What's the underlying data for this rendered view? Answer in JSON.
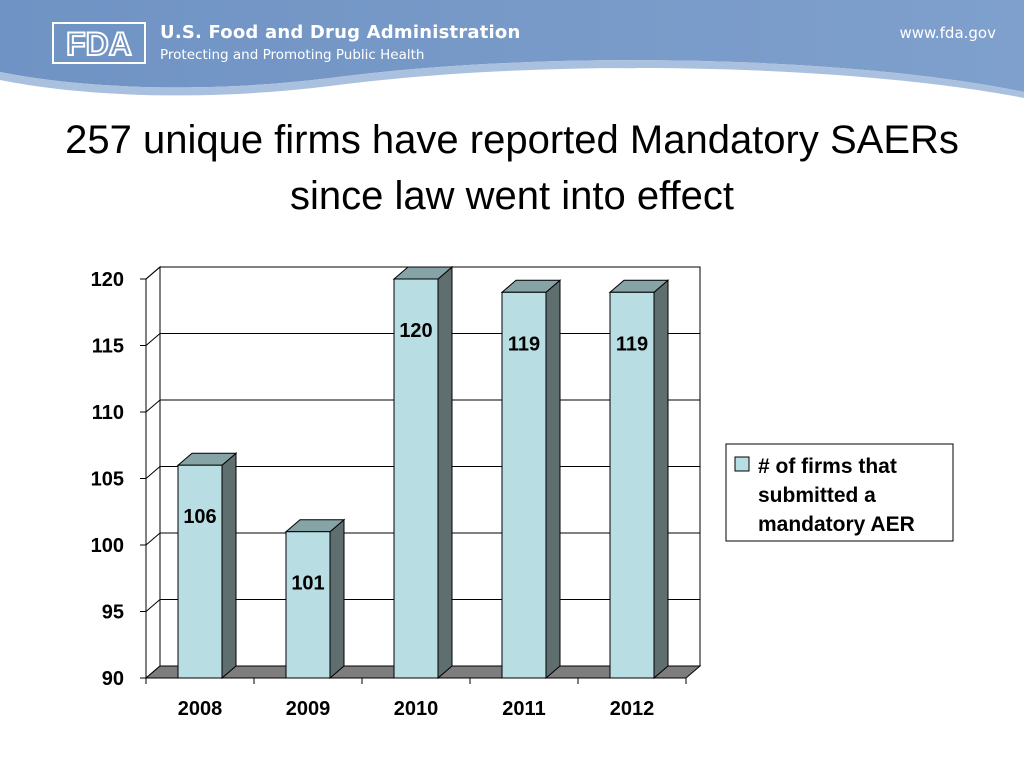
{
  "header": {
    "logo_text": "FDA",
    "agency_name": "U.S. Food and Drug Administration",
    "tagline": "Protecting and Promoting Public Health",
    "website": "www.fda.gov"
  },
  "slide": {
    "title": "257 unique firms have reported Mandatory SAERs since law went into effect"
  },
  "chart_data": {
    "type": "bar",
    "style": "3d-column",
    "categories": [
      "2008",
      "2009",
      "2010",
      "2011",
      "2012"
    ],
    "series": [
      {
        "name": "# of firms that submitted a mandatory AER",
        "values": [
          106,
          101,
          120,
          119,
          119
        ]
      }
    ],
    "legend_lines": [
      "# of firms that",
      "submitted a",
      "mandatory AER"
    ],
    "ylim": [
      90,
      120
    ],
    "yticks": [
      90,
      95,
      100,
      105,
      110,
      115,
      120
    ],
    "grid": true,
    "legend": "right",
    "colors": {
      "bar_front": "#b8dde3",
      "bar_side": "#5f6e6e",
      "bar_top": "#86a3a5",
      "floor": "#7d7d7d"
    }
  }
}
